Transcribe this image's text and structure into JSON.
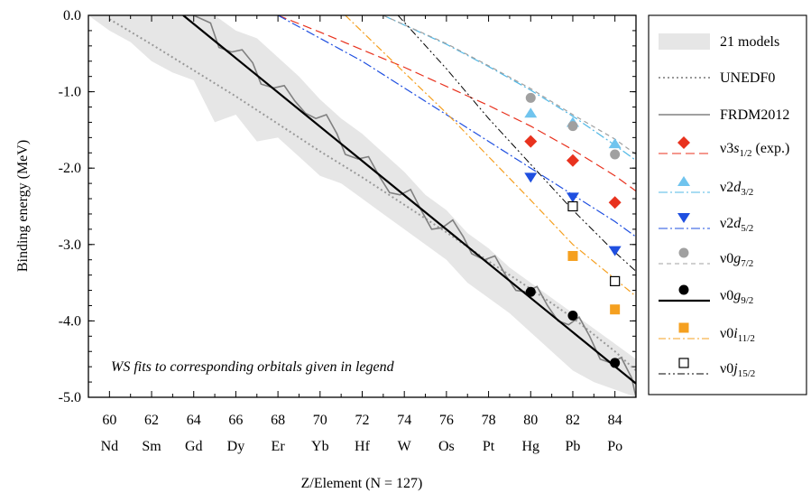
{
  "chart_data": {
    "type": "line",
    "xlabel": "Z/Element (N = 127)",
    "ylabel": "Binding energy (MeV)",
    "annotation": "WS fits to corresponding orbitals given in legend",
    "xlim": [
      59,
      85
    ],
    "ylim": [
      -5.0,
      0.0
    ],
    "x_ticks": [
      60,
      62,
      64,
      66,
      68,
      70,
      72,
      74,
      76,
      78,
      80,
      82,
      84
    ],
    "elements": [
      "Nd",
      "Sm",
      "Gd",
      "Dy",
      "Er",
      "Yb",
      "Hf",
      "W",
      "Os",
      "Pt",
      "Hg",
      "Pb",
      "Po"
    ],
    "y_ticks": [
      0.0,
      -1.0,
      -2.0,
      -3.0,
      -4.0,
      -5.0
    ],
    "y_tick_labels": [
      "0.0",
      "-1.0",
      "-2.0",
      "-3.0",
      "-4.0",
      "-5.0"
    ],
    "legend_position": "outside-right",
    "band": {
      "name": "21 models",
      "color": "#e6e6e6",
      "x": [
        59,
        60,
        61,
        62,
        63,
        64,
        65,
        66,
        67,
        68,
        69,
        70,
        71,
        72,
        73,
        74,
        75,
        76,
        77,
        78,
        79,
        80,
        81,
        82,
        83,
        84,
        85
      ],
      "upper": [
        0.0,
        0.0,
        0.0,
        0.0,
        0.0,
        0.0,
        0.0,
        -0.2,
        -0.3,
        -0.55,
        -0.8,
        -1.1,
        -1.35,
        -1.55,
        -1.8,
        -2.05,
        -2.35,
        -2.55,
        -2.85,
        -3.05,
        -3.3,
        -3.5,
        -3.7,
        -3.9,
        -4.1,
        -4.3,
        -4.5
      ],
      "lower": [
        0.0,
        -0.2,
        -0.35,
        -0.6,
        -0.75,
        -0.85,
        -1.4,
        -1.3,
        -1.65,
        -1.6,
        -1.85,
        -2.1,
        -2.2,
        -2.4,
        -2.6,
        -2.8,
        -3.0,
        -3.2,
        -3.5,
        -3.7,
        -3.9,
        -4.15,
        -4.4,
        -4.65,
        -4.8,
        -4.9,
        -5.0
      ]
    },
    "series": [
      {
        "name": "UNEDF0",
        "kind": "line",
        "color": "#999999",
        "dash": "2,3",
        "width": 2,
        "x": [
          60,
          62,
          64,
          66,
          68,
          70,
          72,
          74,
          76,
          78,
          80,
          82,
          84,
          85
        ],
        "y": [
          -0.05,
          -0.38,
          -0.72,
          -1.06,
          -1.42,
          -1.78,
          -2.12,
          -2.48,
          -2.84,
          -3.22,
          -3.58,
          -3.96,
          -4.4,
          -4.65
        ]
      },
      {
        "name": "FRDM2012",
        "kind": "line",
        "color": "#808080",
        "dash": "",
        "width": 1.6,
        "x": [
          64,
          64.8,
          65.2,
          65.8,
          66.3,
          66.8,
          67.2,
          67.8,
          68.3,
          68.8,
          69.3,
          69.8,
          70.3,
          70.8,
          71.2,
          71.8,
          72.3,
          72.8,
          73.3,
          73.8,
          74.3,
          74.8,
          75.3,
          75.8,
          76.3,
          76.8,
          77.2,
          77.8,
          78.3,
          78.8,
          79.3,
          79.8,
          80.3,
          80.8,
          81.3,
          81.8,
          82.3,
          82.8,
          83.3,
          83.8,
          84.3,
          84.8,
          85
        ],
        "y": [
          0.0,
          -0.1,
          -0.42,
          -0.48,
          -0.45,
          -0.62,
          -0.9,
          -0.95,
          -0.92,
          -1.12,
          -1.28,
          -1.35,
          -1.3,
          -1.55,
          -1.82,
          -1.88,
          -1.85,
          -2.1,
          -2.32,
          -2.35,
          -2.28,
          -2.55,
          -2.8,
          -2.78,
          -2.68,
          -2.9,
          -3.12,
          -3.2,
          -3.15,
          -3.4,
          -3.6,
          -3.62,
          -3.55,
          -3.8,
          -4.0,
          -4.05,
          -3.95,
          -4.2,
          -4.5,
          -4.55,
          -4.48,
          -4.75,
          -5.0
        ]
      },
      {
        "name": "ν0g9/2 WS fit",
        "kind": "line",
        "color": "#000000",
        "dash": "",
        "width": 2.2,
        "x": [
          63.5,
          85
        ],
        "y": [
          0.0,
          -4.82
        ]
      },
      {
        "name": "ν3s1/2 WS fit",
        "kind": "line",
        "color": "#e8321e",
        "dash": "10,5",
        "width": 1.2,
        "x": [
          68,
          70,
          72,
          74,
          76,
          78,
          80,
          82,
          84,
          85
        ],
        "y": [
          0.0,
          -0.22,
          -0.45,
          -0.68,
          -0.93,
          -1.18,
          -1.45,
          -1.76,
          -2.1,
          -2.3
        ]
      },
      {
        "name": "ν2d5/2 WS fit",
        "kind": "line",
        "color": "#1f4fe0",
        "dash": "10,3,2,3",
        "width": 1.2,
        "x": [
          68,
          70,
          72,
          74,
          76,
          78,
          80,
          82,
          84,
          85
        ],
        "y": [
          0.0,
          -0.3,
          -0.6,
          -0.95,
          -1.3,
          -1.65,
          -2.0,
          -2.35,
          -2.7,
          -2.9
        ]
      },
      {
        "name": "ν2d3/2 WS fit",
        "kind": "line",
        "color": "#50b8e6",
        "dash": "10,3,2,3",
        "width": 1.2,
        "x": [
          73,
          76,
          78,
          80,
          82,
          84,
          85
        ],
        "y": [
          0.0,
          -0.38,
          -0.67,
          -0.98,
          -1.32,
          -1.7,
          -1.9
        ]
      },
      {
        "name": "ν0g7/2 WS fit",
        "kind": "line",
        "color": "#a0a0a0",
        "dash": "5,4",
        "width": 1.2,
        "x": [
          73,
          76,
          78,
          80,
          82,
          84,
          85
        ],
        "y": [
          0.0,
          -0.37,
          -0.66,
          -0.96,
          -1.3,
          -1.62,
          -1.82
        ]
      },
      {
        "name": "ν0i11/2 WS fit",
        "kind": "line",
        "color": "#f5a020",
        "dash": "8,3,2,3",
        "width": 1.2,
        "x": [
          71.2,
          74,
          76,
          78,
          80,
          82,
          84,
          85
        ],
        "y": [
          0.0,
          -0.75,
          -1.28,
          -1.85,
          -2.42,
          -3.0,
          -3.45,
          -3.68
        ]
      },
      {
        "name": "ν0j15/2 WS fit",
        "kind": "line",
        "color": "#000000",
        "dash": "8,3,2,3,2,3",
        "width": 1.0,
        "x": [
          73.7,
          76,
          78,
          80,
          82,
          84,
          85
        ],
        "y": [
          0.0,
          -0.7,
          -1.35,
          -1.95,
          -2.55,
          -3.1,
          -3.35
        ]
      }
    ],
    "markers": [
      {
        "name": "ν3s1/2 (exp.)",
        "shape": "diamond",
        "color": "#e8321e",
        "x": [
          80,
          82,
          84
        ],
        "y": [
          -1.65,
          -1.9,
          -2.45
        ]
      },
      {
        "name": "ν2d3/2",
        "shape": "triangle-up",
        "color": "#70c4ee",
        "x": [
          80,
          82,
          84
        ],
        "y": [
          -1.28,
          -1.4,
          -1.68
        ]
      },
      {
        "name": "ν2d5/2",
        "shape": "triangle-down",
        "color": "#1f4fe0",
        "x": [
          80,
          82,
          84
        ],
        "y": [
          -2.12,
          -2.38,
          -3.08
        ]
      },
      {
        "name": "ν0g7/2",
        "shape": "circle",
        "color": "#a0a0a0",
        "x": [
          80,
          82,
          84
        ],
        "y": [
          -1.08,
          -1.45,
          -1.82
        ]
      },
      {
        "name": "ν0g9/2",
        "shape": "circle",
        "color": "#000000",
        "x": [
          80,
          82,
          84
        ],
        "y": [
          -3.62,
          -3.93,
          -4.55
        ]
      },
      {
        "name": "ν0i11/2",
        "shape": "square",
        "color": "#f5a020",
        "x": [
          82,
          84
        ],
        "y": [
          -3.15,
          -3.85
        ]
      },
      {
        "name": "ν0j15/2",
        "shape": "square-open",
        "color": "#000000",
        "x": [
          82,
          84
        ],
        "y": [
          -2.5,
          -3.48
        ]
      }
    ],
    "legend": [
      {
        "key": "band",
        "label": "21 models"
      },
      {
        "key": "dotted",
        "label": "UNEDF0"
      },
      {
        "key": "gray-solid",
        "label": "FRDM2012"
      },
      {
        "key": "s12",
        "label": "ν3s1/2 (exp.)"
      },
      {
        "key": "d32",
        "label": "ν2d3/2"
      },
      {
        "key": "d52",
        "label": "ν2d5/2"
      },
      {
        "key": "g72",
        "label": "ν0g7/2"
      },
      {
        "key": "g92",
        "label": "ν0g9/2"
      },
      {
        "key": "i112",
        "label": "ν0i11/2"
      },
      {
        "key": "j152",
        "label": "ν0j15/2"
      }
    ]
  }
}
